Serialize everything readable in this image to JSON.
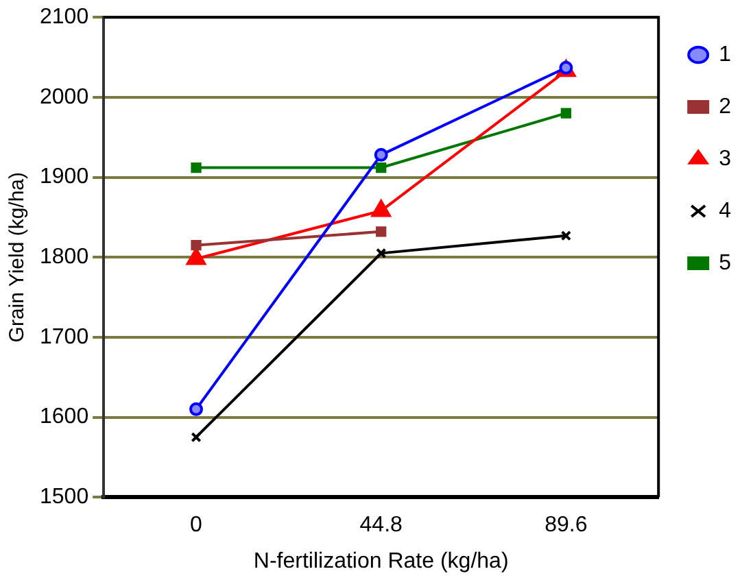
{
  "chart_data": {
    "type": "line",
    "xlabel": "N-fertilization Rate (kg/ha)",
    "ylabel": "Grain Yield (kg/ha)",
    "categories": [
      "0",
      "44.8",
      "89.6"
    ],
    "ylim": [
      1500,
      2100
    ],
    "yticks": [
      1500,
      1600,
      1700,
      1800,
      1900,
      2000,
      2100
    ],
    "grid": "y",
    "legend": "right",
    "series": [
      {
        "name": "1",
        "color": "#0000ff",
        "marker": "circle",
        "values": [
          1610,
          1928,
          2037
        ]
      },
      {
        "name": "2",
        "color": "#993333",
        "marker": "square",
        "values": [
          1815,
          1832,
          null
        ]
      },
      {
        "name": "3",
        "color": "#ff0000",
        "marker": "triangle",
        "values": [
          1798,
          1858,
          2033
        ]
      },
      {
        "name": "4",
        "color": "#000000",
        "marker": "cross",
        "values": [
          1575,
          1805,
          1827
        ]
      },
      {
        "name": "5",
        "color": "#007700",
        "marker": "square",
        "values": [
          1912,
          1912,
          1980
        ]
      }
    ]
  }
}
